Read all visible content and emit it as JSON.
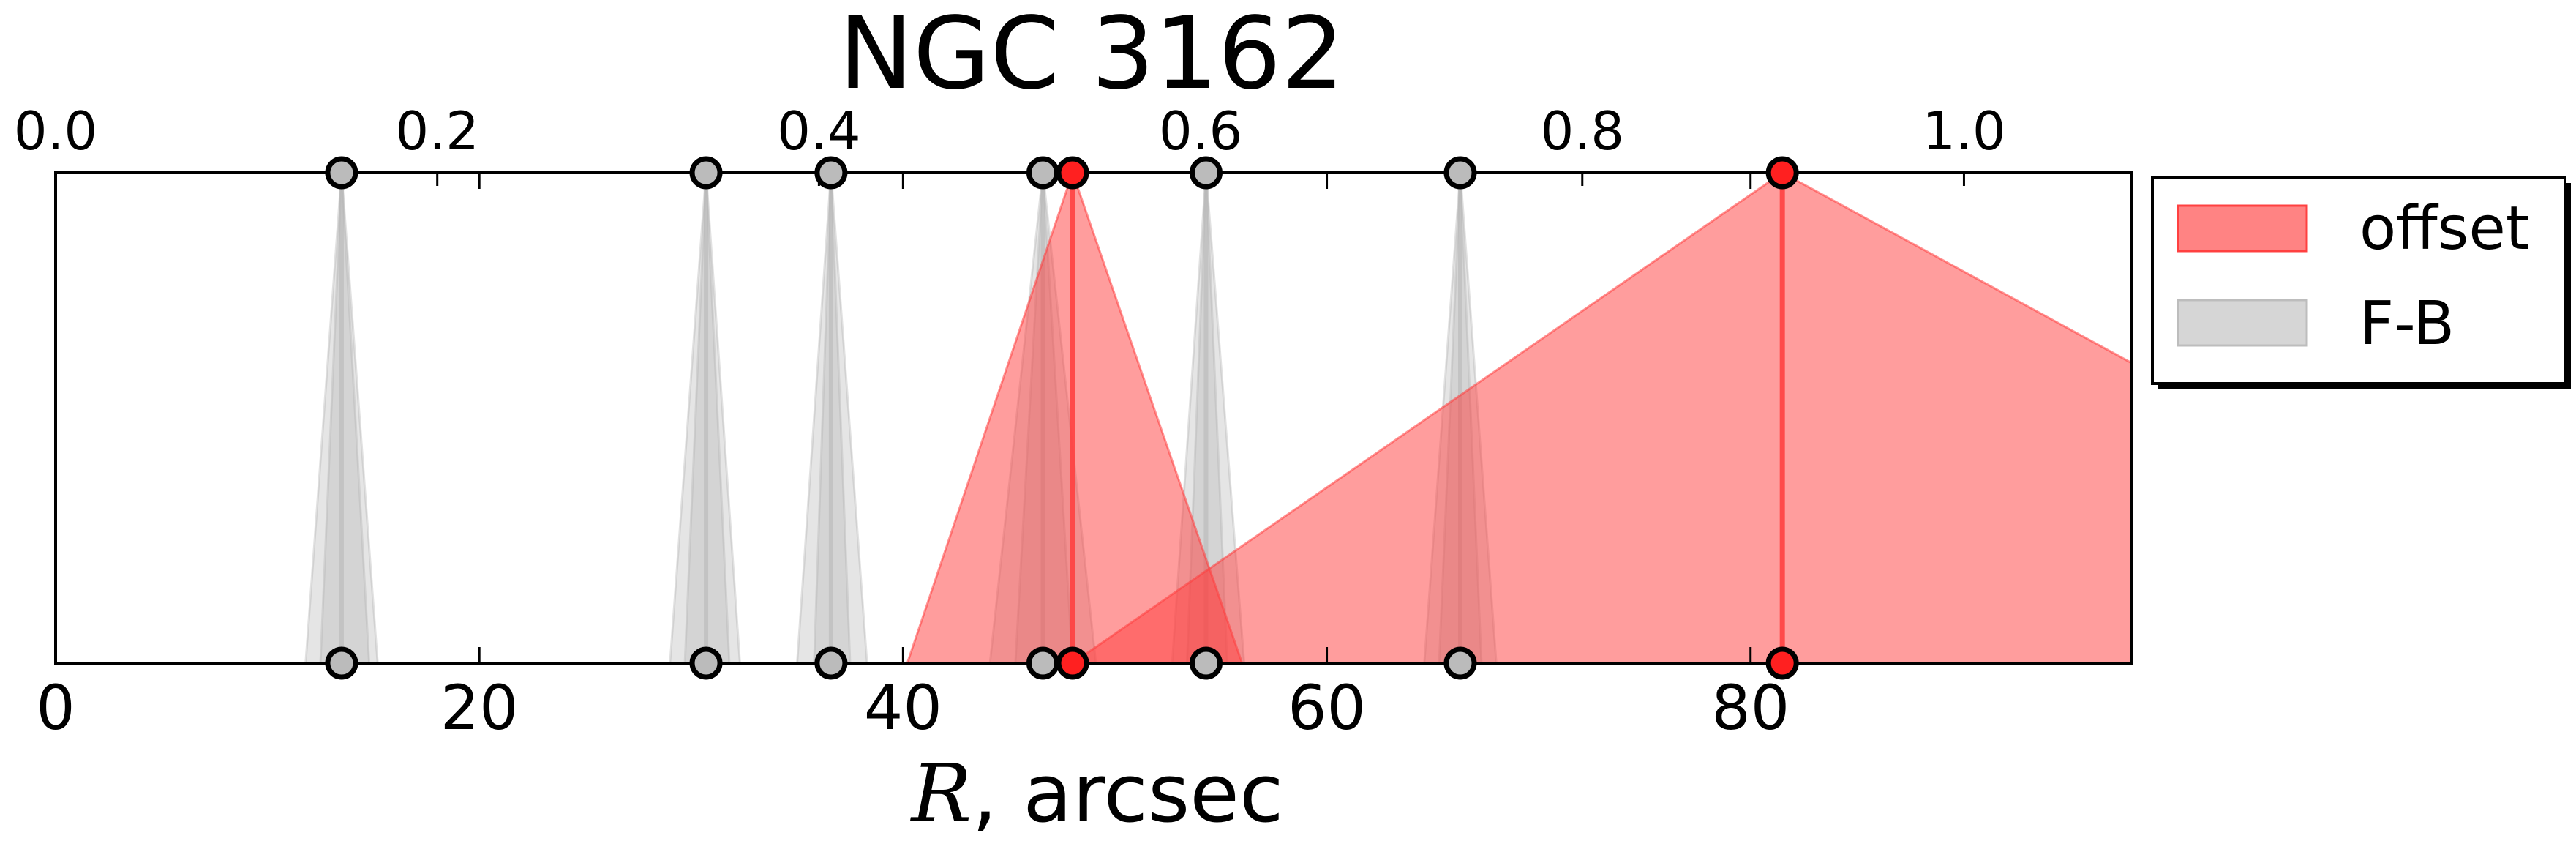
{
  "chart_data": {
    "type": "area",
    "title": "NGC 3162",
    "xlabel_italic": "R",
    "xlabel_rest": ", arcsec",
    "xlim": [
      0,
      98
    ],
    "x_ticks": [
      "0",
      "20",
      "40",
      "60",
      "80"
    ],
    "x_tick_values": [
      0,
      20,
      40,
      60,
      80
    ],
    "top_axis": {
      "xlim": [
        0,
        1.088
      ],
      "ticks": [
        "0.0",
        "0.2",
        "0.4",
        "0.6",
        "0.8",
        "1.0"
      ],
      "tick_values": [
        0.0,
        0.2,
        0.4,
        0.6,
        0.8,
        1.0
      ]
    },
    "grid": false,
    "legend": {
      "placement": "outside-right-top",
      "entries": [
        {
          "label": "offset",
          "color": "#ff5a5a"
        },
        {
          "label": "F-B",
          "color": "#c8c8c8"
        }
      ]
    },
    "series": [
      {
        "name": "offset",
        "color": "#ff3c3c",
        "peaks": [
          {
            "center": 48.0,
            "left": 40.2,
            "right": 56.0
          },
          {
            "center": 81.5,
            "left": 48.0,
            "right": 124.0
          }
        ]
      },
      {
        "name": "F-B",
        "color": "#b4b4b4",
        "peaks": [
          {
            "center": 13.5,
            "left": 11.8,
            "right": 15.2
          },
          {
            "center": 13.5,
            "left": 12.5,
            "right": 14.8
          },
          {
            "center": 30.7,
            "left": 29.0,
            "right": 32.3
          },
          {
            "center": 30.7,
            "left": 29.7,
            "right": 31.8
          },
          {
            "center": 36.6,
            "left": 35.0,
            "right": 38.3
          },
          {
            "center": 36.6,
            "left": 35.8,
            "right": 37.5
          },
          {
            "center": 46.6,
            "left": 44.1,
            "right": 49.1
          },
          {
            "center": 46.6,
            "left": 45.3,
            "right": 48.0
          },
          {
            "center": 54.3,
            "left": 52.7,
            "right": 56.1
          },
          {
            "center": 54.3,
            "left": 53.4,
            "right": 55.3
          },
          {
            "center": 66.3,
            "left": 64.6,
            "right": 68.0
          },
          {
            "center": 66.3,
            "left": 65.3,
            "right": 67.3
          }
        ]
      }
    ],
    "markers": [
      {
        "x": 13.5,
        "color": "#bbbbbb",
        "series": "F-B"
      },
      {
        "x": 30.7,
        "color": "#bbbbbb",
        "series": "F-B"
      },
      {
        "x": 36.6,
        "color": "#bbbbbb",
        "series": "F-B"
      },
      {
        "x": 46.6,
        "color": "#bbbbbb",
        "series": "F-B"
      },
      {
        "x": 54.3,
        "color": "#bbbbbb",
        "series": "F-B"
      },
      {
        "x": 66.3,
        "color": "#bbbbbb",
        "series": "F-B"
      },
      {
        "x": 48.0,
        "color": "#ff2020",
        "series": "offset"
      },
      {
        "x": 81.5,
        "color": "#ff2020",
        "series": "offset"
      }
    ]
  }
}
